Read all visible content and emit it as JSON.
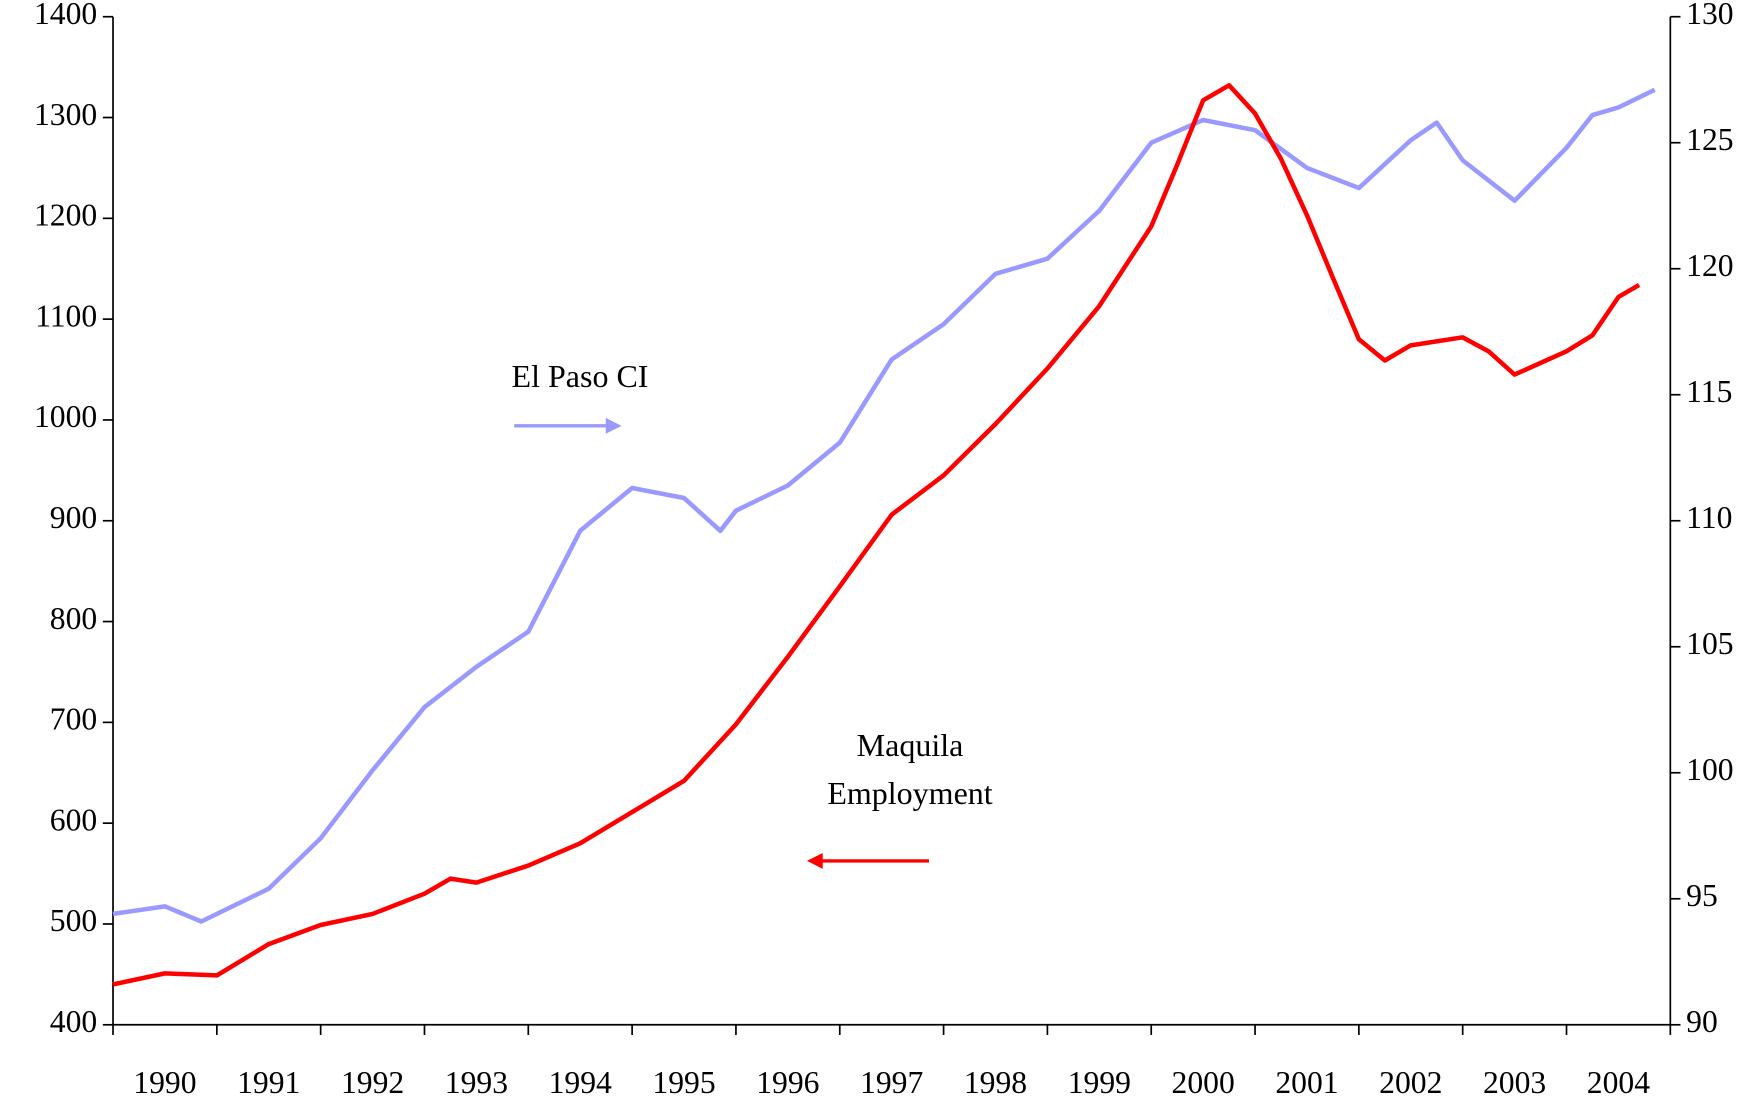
{
  "chart_data": {
    "type": "line",
    "xlim": [
      1990,
      2005
    ],
    "xticks": [
      1990,
      1991,
      1992,
      1993,
      1994,
      1995,
      1996,
      1997,
      1998,
      1999,
      2000,
      2001,
      2002,
      2003,
      2004,
      2005
    ],
    "year_labels": [
      "1990",
      "1991",
      "1992",
      "1993",
      "1994",
      "1995",
      "1996",
      "1997",
      "1998",
      "1999",
      "2000",
      "2001",
      "2002",
      "2003",
      "2004"
    ],
    "ylim": [
      400,
      1400
    ],
    "yticks": [
      400,
      500,
      600,
      700,
      800,
      900,
      1000,
      1100,
      1200,
      1300,
      1400
    ],
    "y2lim": [
      90,
      130
    ],
    "y2ticks": [
      90,
      95,
      100,
      105,
      110,
      115,
      120,
      125,
      130
    ],
    "series": [
      {
        "name": "El Paso CI",
        "color": "#9999ff",
        "axis": "y2",
        "x": [
          1990,
          1990.5,
          1990.85,
          1991.5,
          1992,
          1992.5,
          1993,
          1993.5,
          1994,
          1994.5,
          1995,
          1995.5,
          1995.85,
          1996,
          1996.5,
          1997,
          1997.5,
          1998,
          1998.5,
          1999,
          1999.5,
          2000,
          2000.5,
          2001,
          2001.5,
          2002,
          2002.5,
          2002.75,
          2003,
          2003.5,
          2004,
          2004.25,
          2004.5,
          2004.85
        ],
        "values": [
          94.4,
          94.7,
          94.1,
          95.4,
          97.4,
          100.1,
          102.6,
          104.2,
          105.6,
          109.6,
          111.3,
          110.9,
          109.6,
          110.4,
          111.4,
          113.1,
          116.4,
          117.8,
          119.8,
          120.4,
          122.3,
          125.0,
          125.9,
          125.5,
          124.0,
          123.2,
          125.1,
          125.8,
          124.3,
          122.7,
          124.8,
          126.1,
          126.4,
          127.1
        ]
      },
      {
        "name": "Maquila Employment",
        "color": "#ff0000",
        "axis": "y",
        "x": [
          1990,
          1990.5,
          1991,
          1991.5,
          1992,
          1992.5,
          1993,
          1993.25,
          1993.5,
          1994,
          1994.5,
          1995,
          1995.5,
          1996,
          1996.5,
          1997,
          1997.5,
          1998,
          1998.5,
          1999,
          1999.5,
          2000,
          2000.25,
          2000.5,
          2000.75,
          2001,
          2001.25,
          2001.5,
          2001.75,
          2002,
          2002.25,
          2002.5,
          2003,
          2003.25,
          2003.5,
          2004,
          2004.25,
          2004.5,
          2004.7
        ],
        "values": [
          440,
          451,
          449,
          480,
          499,
          510,
          530,
          545,
          541,
          558,
          580,
          611,
          642,
          698,
          765,
          835,
          906,
          945,
          996,
          1051,
          1113,
          1192,
          1253,
          1317,
          1332,
          1304,
          1259,
          1203,
          1141,
          1080,
          1059,
          1074,
          1082,
          1068,
          1045,
          1068,
          1084,
          1122,
          1134
        ]
      }
    ]
  }
}
